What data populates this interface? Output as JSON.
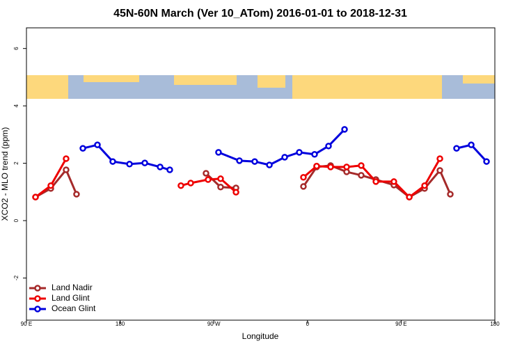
{
  "chart_data": {
    "type": "line",
    "title": "45N-60N March (Ver 10_ATom)   2016-01-01 to 2018-12-31",
    "x_label": "Longitude",
    "y_label": "XCO2 - MLO trend (ppm)",
    "xlim": [
      90,
      540
    ],
    "ylim": [
      -3.47,
      6.72
    ],
    "xticks": [
      {
        "value": 90,
        "label": "90 E"
      },
      {
        "value": 180,
        "label": "180"
      },
      {
        "value": 270,
        "label": "90 W"
      },
      {
        "value": 360,
        "label": "0"
      },
      {
        "value": 450,
        "label": "90 E"
      },
      {
        "value": 540,
        "label": "180"
      }
    ],
    "yticks": [
      -2,
      0,
      2,
      4,
      6
    ],
    "legend": "bottom-left",
    "series": [
      {
        "name": "Land Nadir",
        "color": "#a52a2a",
        "x": [
          98.7,
          113.4,
          128.1,
          138.1,
          null,
          262.5,
          276.5,
          291.3,
          null,
          356.1,
          368.8,
          382.2,
          397.6,
          411.6,
          425.7,
          443.0,
          457.8,
          472.5,
          487.2,
          497.2
        ],
        "values": [
          0.82,
          1.12,
          1.77,
          0.92,
          null,
          1.65,
          1.17,
          1.14,
          null,
          1.19,
          1.87,
          1.92,
          1.7,
          1.58,
          1.43,
          1.24,
          0.82,
          1.12,
          1.75,
          0.92
        ]
      },
      {
        "name": "Land Glint",
        "color": "#ee0000",
        "x": [
          98.7,
          113.4,
          128.1,
          null,
          238.4,
          247.8,
          264.5,
          276.5,
          291.3,
          null,
          356.1,
          368.8,
          382.2,
          397.6,
          411.6,
          425.7,
          443.0,
          457.8,
          472.5,
          487.2
        ],
        "values": [
          0.82,
          1.22,
          2.16,
          null,
          1.22,
          1.31,
          1.43,
          1.46,
          0.99,
          null,
          1.51,
          1.9,
          1.87,
          1.87,
          1.92,
          1.36,
          1.36,
          0.82,
          1.22,
          2.16
        ]
      },
      {
        "name": "Ocean Glint",
        "color": "#0000dd",
        "x": [
          144.2,
          158.2,
          172.9,
          189.0,
          203.7,
          218.4,
          227.7,
          null,
          274.5,
          294.6,
          309.3,
          323.4,
          338.1,
          352.1,
          366.8,
          380.2,
          395.6,
          null,
          503.2,
          517.3,
          532.0
        ],
        "values": [
          2.52,
          2.64,
          2.06,
          1.97,
          2.01,
          1.87,
          1.77,
          null,
          2.38,
          2.09,
          2.06,
          1.94,
          2.21,
          2.38,
          2.31,
          2.6,
          3.18,
          null,
          2.52,
          2.64,
          2.06
        ]
      }
    ]
  }
}
